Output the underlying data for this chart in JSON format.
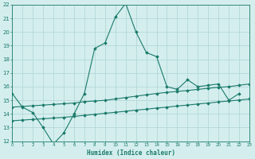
{
  "xlabel": "Humidex (Indice chaleur)",
  "x_values": [
    0,
    1,
    2,
    3,
    4,
    5,
    6,
    7,
    8,
    9,
    10,
    11,
    12,
    13,
    14,
    15,
    16,
    17,
    18,
    19,
    20,
    21,
    22,
    23
  ],
  "line1_y": [
    15.5,
    14.5,
    14.1,
    13.0,
    11.8,
    12.6,
    14.0,
    15.5,
    18.8,
    19.2,
    21.1,
    22.1,
    20.0,
    18.5,
    18.2,
    16.0,
    15.8,
    16.5,
    16.0,
    16.1,
    16.2,
    15.0,
    15.5,
    null
  ],
  "line2_y": [
    14.5,
    14.55,
    14.6,
    14.65,
    14.7,
    14.75,
    14.8,
    14.9,
    14.95,
    15.0,
    15.1,
    15.2,
    15.3,
    15.4,
    15.5,
    15.58,
    15.65,
    15.72,
    15.8,
    15.88,
    15.95,
    16.0,
    16.1,
    16.2
  ],
  "line3_y": [
    13.5,
    13.55,
    13.6,
    13.65,
    13.7,
    13.75,
    13.82,
    13.9,
    13.97,
    14.05,
    14.12,
    14.2,
    14.28,
    14.35,
    14.43,
    14.5,
    14.58,
    14.65,
    14.73,
    14.8,
    14.88,
    14.95,
    15.02,
    15.1
  ],
  "line_color": "#1a7a6a",
  "bg_color": "#d4eeee",
  "grid_color": "#aed4d4",
  "ylim": [
    12,
    22
  ],
  "xlim": [
    0,
    23
  ],
  "yticks": [
    12,
    13,
    14,
    15,
    16,
    17,
    18,
    19,
    20,
    21,
    22
  ],
  "xticks": [
    0,
    1,
    2,
    3,
    4,
    5,
    6,
    7,
    8,
    9,
    10,
    11,
    12,
    13,
    14,
    15,
    16,
    17,
    18,
    19,
    20,
    21,
    22,
    23
  ]
}
